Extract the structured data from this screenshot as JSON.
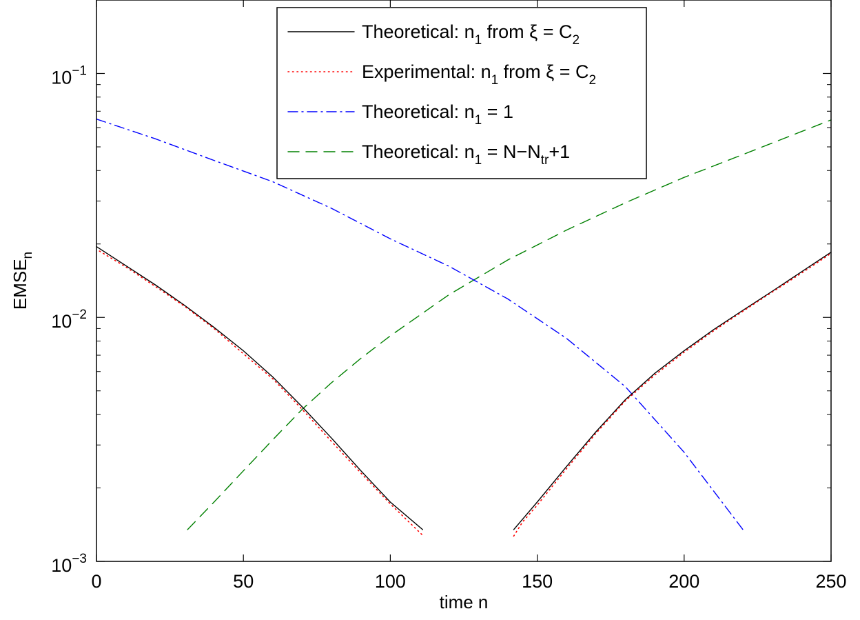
{
  "chart_data": {
    "type": "line",
    "xlabel": "time n",
    "ylabel": {
      "main": "EMSE",
      "sub": "n"
    },
    "xlim": [
      0,
      250
    ],
    "ylim": [
      0.001,
      0.2
    ],
    "yscale": "log",
    "grid": false,
    "legend_position": "top-center",
    "x_ticks": [
      0,
      50,
      100,
      150,
      200,
      250
    ],
    "x_tick_labels": [
      "0",
      "50",
      "100",
      "150",
      "200",
      "250"
    ],
    "y_ticks": [
      {
        "value": 0.1,
        "base": "10",
        "exp": "−1"
      },
      {
        "value": 0.01,
        "base": "10",
        "exp": "−2"
      },
      {
        "value": 0.001,
        "base": "10",
        "exp": "−3"
      }
    ],
    "series": [
      {
        "legend": {
          "pre": "Theoretical: n",
          "sub": "1",
          "post": " from ξ = C",
          "sub2": "2"
        },
        "color": "#000000",
        "style": "solid",
        "segments": [
          {
            "x": [
              0,
              10,
              20,
              30,
              40,
              50,
              60,
              70,
              80,
              90,
              100,
              111
            ],
            "y": [
              0.0195,
              0.0163,
              0.0136,
              0.0112,
              0.0091,
              0.0073,
              0.0057,
              0.0043,
              0.0032,
              0.00235,
              0.00175,
              0.00135
            ]
          },
          {
            "x": [
              142,
              150,
              160,
              170,
              180,
              190,
              200,
              210,
              220,
              230,
              240,
              250
            ],
            "y": [
              0.00135,
              0.00175,
              0.00245,
              0.0034,
              0.0046,
              0.0059,
              0.0073,
              0.0089,
              0.0107,
              0.0128,
              0.0154,
              0.0185
            ]
          }
        ]
      },
      {
        "legend": {
          "pre": "Experimental: n",
          "sub": "1",
          "post": " from ξ = C",
          "sub2": "2"
        },
        "color": "#ff0000",
        "style": "dotted",
        "segments": [
          {
            "x": [
              1,
              10,
              20,
              30,
              40,
              50,
              60,
              70,
              80,
              90,
              100,
              111
            ],
            "y": [
              0.0187,
              0.0161,
              0.0134,
              0.0111,
              0.009,
              0.0071,
              0.0056,
              0.0042,
              0.0031,
              0.0023,
              0.00172,
              0.00128
            ]
          },
          {
            "x": [
              142,
              145,
              150,
              160,
              170,
              180,
              190,
              200,
              210,
              220,
              230,
              240,
              250
            ],
            "y": [
              0.00127,
              0.00145,
              0.0017,
              0.0024,
              0.00335,
              0.00455,
              0.0058,
              0.0072,
              0.0088,
              0.0106,
              0.0127,
              0.0152,
              0.0183
            ]
          }
        ]
      },
      {
        "legend": {
          "pre": "Theoretical: n",
          "sub": "1",
          "post": " = 1",
          "sub2": ""
        },
        "color": "#0000ff",
        "style": "dashdot",
        "segments": [
          {
            "x": [
              0,
              20,
              40,
              60,
              80,
              100,
              120,
              140,
              160,
              180,
              200,
              220
            ],
            "y": [
              0.065,
              0.054,
              0.044,
              0.036,
              0.028,
              0.021,
              0.0162,
              0.0119,
              0.0082,
              0.0052,
              0.0028,
              0.00135
            ]
          }
        ]
      },
      {
        "legend": {
          "pre": "Theoretical: n",
          "sub": "1",
          "post": " = N−N",
          "sub2": "tr",
          "post2": "+1"
        },
        "color": "#008000",
        "style": "dashed",
        "segments": [
          {
            "x": [
              31,
              40,
              50,
              60,
              70,
              80,
              90,
              100,
              120,
              140,
              160,
              180,
              200,
              220,
              250
            ],
            "y": [
              0.00135,
              0.00175,
              0.00235,
              0.00315,
              0.0042,
              0.0054,
              0.0068,
              0.0084,
              0.0124,
              0.0172,
              0.0228,
              0.0295,
              0.0375,
              0.0465,
              0.0645
            ]
          }
        ]
      }
    ]
  }
}
